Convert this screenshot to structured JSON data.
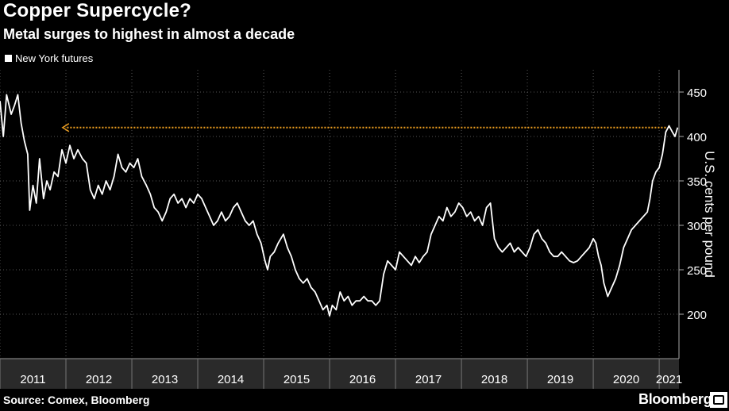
{
  "header": {
    "title": "Copper Supercycle?",
    "subtitle": "Metal surges to highest in almost a decade"
  },
  "legend": {
    "label": "New York futures",
    "swatch_color": "#ffffff"
  },
  "footer": {
    "source": "Source: Comex, Bloomberg",
    "brand": "Bloomberg"
  },
  "chart_data": {
    "type": "line",
    "title": "Copper Supercycle?",
    "subtitle": "Metal surges to highest in almost a decade",
    "ylabel": "U.S. cents per pound",
    "ylim": [
      150,
      475
    ],
    "yticks": [
      200,
      250,
      300,
      350,
      400,
      450
    ],
    "xlim": [
      2011.0,
      2021.3
    ],
    "xticks": [
      "2011",
      "2012",
      "2013",
      "2014",
      "2015",
      "2016",
      "2017",
      "2018",
      "2019",
      "2020",
      "2021"
    ],
    "grid": true,
    "legend_position": "top-left",
    "series": [
      {
        "name": "New York futures",
        "color": "#ffffff",
        "points": [
          [
            2011.0,
            440
          ],
          [
            2011.05,
            400
          ],
          [
            2011.1,
            447
          ],
          [
            2011.17,
            425
          ],
          [
            2011.22,
            435
          ],
          [
            2011.27,
            447
          ],
          [
            2011.32,
            415
          ],
          [
            2011.37,
            395
          ],
          [
            2011.42,
            380
          ],
          [
            2011.45,
            317
          ],
          [
            2011.5,
            345
          ],
          [
            2011.55,
            325
          ],
          [
            2011.6,
            375
          ],
          [
            2011.66,
            330
          ],
          [
            2011.71,
            350
          ],
          [
            2011.76,
            340
          ],
          [
            2011.82,
            360
          ],
          [
            2011.88,
            355
          ],
          [
            2011.94,
            385
          ],
          [
            2012.0,
            370
          ],
          [
            2012.06,
            390
          ],
          [
            2012.12,
            375
          ],
          [
            2012.18,
            385
          ],
          [
            2012.25,
            375
          ],
          [
            2012.31,
            370
          ],
          [
            2012.37,
            340
          ],
          [
            2012.43,
            330
          ],
          [
            2012.49,
            345
          ],
          [
            2012.55,
            335
          ],
          [
            2012.61,
            350
          ],
          [
            2012.67,
            340
          ],
          [
            2012.73,
            355
          ],
          [
            2012.79,
            380
          ],
          [
            2012.85,
            365
          ],
          [
            2012.91,
            360
          ],
          [
            2012.97,
            370
          ],
          [
            2013.03,
            365
          ],
          [
            2013.09,
            375
          ],
          [
            2013.15,
            355
          ],
          [
            2013.22,
            345
          ],
          [
            2013.28,
            335
          ],
          [
            2013.34,
            320
          ],
          [
            2013.4,
            315
          ],
          [
            2013.46,
            305
          ],
          [
            2013.52,
            315
          ],
          [
            2013.58,
            330
          ],
          [
            2013.64,
            335
          ],
          [
            2013.7,
            325
          ],
          [
            2013.76,
            330
          ],
          [
            2013.82,
            320
          ],
          [
            2013.88,
            330
          ],
          [
            2013.94,
            325
          ],
          [
            2014.0,
            335
          ],
          [
            2014.06,
            330
          ],
          [
            2014.12,
            320
          ],
          [
            2014.18,
            310
          ],
          [
            2014.24,
            300
          ],
          [
            2014.3,
            305
          ],
          [
            2014.36,
            315
          ],
          [
            2014.42,
            305
          ],
          [
            2014.48,
            310
          ],
          [
            2014.54,
            320
          ],
          [
            2014.6,
            325
          ],
          [
            2014.66,
            315
          ],
          [
            2014.72,
            305
          ],
          [
            2014.78,
            300
          ],
          [
            2014.84,
            305
          ],
          [
            2014.9,
            290
          ],
          [
            2014.96,
            280
          ],
          [
            2015.02,
            260
          ],
          [
            2015.06,
            250
          ],
          [
            2015.1,
            265
          ],
          [
            2015.16,
            270
          ],
          [
            2015.22,
            280
          ],
          [
            2015.3,
            290
          ],
          [
            2015.36,
            275
          ],
          [
            2015.42,
            265
          ],
          [
            2015.48,
            250
          ],
          [
            2015.54,
            240
          ],
          [
            2015.6,
            235
          ],
          [
            2015.66,
            240
          ],
          [
            2015.72,
            230
          ],
          [
            2015.78,
            225
          ],
          [
            2015.84,
            215
          ],
          [
            2015.9,
            205
          ],
          [
            2015.96,
            210
          ],
          [
            2016.0,
            198
          ],
          [
            2016.04,
            210
          ],
          [
            2016.1,
            205
          ],
          [
            2016.16,
            225
          ],
          [
            2016.22,
            215
          ],
          [
            2016.28,
            220
          ],
          [
            2016.34,
            210
          ],
          [
            2016.4,
            215
          ],
          [
            2016.46,
            215
          ],
          [
            2016.52,
            220
          ],
          [
            2016.58,
            215
          ],
          [
            2016.64,
            215
          ],
          [
            2016.7,
            210
          ],
          [
            2016.76,
            215
          ],
          [
            2016.82,
            245
          ],
          [
            2016.88,
            260
          ],
          [
            2016.94,
            255
          ],
          [
            2017.0,
            250
          ],
          [
            2017.06,
            270
          ],
          [
            2017.12,
            265
          ],
          [
            2017.18,
            260
          ],
          [
            2017.24,
            255
          ],
          [
            2017.3,
            265
          ],
          [
            2017.36,
            258
          ],
          [
            2017.42,
            265
          ],
          [
            2017.48,
            270
          ],
          [
            2017.54,
            290
          ],
          [
            2017.6,
            300
          ],
          [
            2017.66,
            310
          ],
          [
            2017.72,
            305
          ],
          [
            2017.78,
            320
          ],
          [
            2017.84,
            310
          ],
          [
            2017.9,
            315
          ],
          [
            2017.96,
            325
          ],
          [
            2018.02,
            320
          ],
          [
            2018.08,
            310
          ],
          [
            2018.14,
            315
          ],
          [
            2018.2,
            305
          ],
          [
            2018.26,
            310
          ],
          [
            2018.32,
            300
          ],
          [
            2018.38,
            320
          ],
          [
            2018.44,
            325
          ],
          [
            2018.5,
            285
          ],
          [
            2018.56,
            275
          ],
          [
            2018.62,
            270
          ],
          [
            2018.68,
            275
          ],
          [
            2018.74,
            280
          ],
          [
            2018.8,
            270
          ],
          [
            2018.86,
            275
          ],
          [
            2018.92,
            270
          ],
          [
            2018.98,
            265
          ],
          [
            2019.04,
            275
          ],
          [
            2019.1,
            290
          ],
          [
            2019.16,
            295
          ],
          [
            2019.22,
            285
          ],
          [
            2019.28,
            280
          ],
          [
            2019.34,
            270
          ],
          [
            2019.4,
            265
          ],
          [
            2019.46,
            265
          ],
          [
            2019.52,
            270
          ],
          [
            2019.58,
            265
          ],
          [
            2019.64,
            260
          ],
          [
            2019.7,
            258
          ],
          [
            2019.76,
            260
          ],
          [
            2019.82,
            265
          ],
          [
            2019.88,
            270
          ],
          [
            2019.94,
            275
          ],
          [
            2020.0,
            285
          ],
          [
            2020.04,
            280
          ],
          [
            2020.08,
            265
          ],
          [
            2020.12,
            255
          ],
          [
            2020.16,
            235
          ],
          [
            2020.22,
            220
          ],
          [
            2020.28,
            230
          ],
          [
            2020.34,
            240
          ],
          [
            2020.4,
            255
          ],
          [
            2020.46,
            275
          ],
          [
            2020.52,
            285
          ],
          [
            2020.58,
            295
          ],
          [
            2020.64,
            300
          ],
          [
            2020.7,
            305
          ],
          [
            2020.76,
            310
          ],
          [
            2020.82,
            315
          ],
          [
            2020.86,
            330
          ],
          [
            2020.9,
            350
          ],
          [
            2020.95,
            360
          ],
          [
            2021.0,
            365
          ],
          [
            2021.05,
            380
          ],
          [
            2021.1,
            405
          ],
          [
            2021.15,
            412
          ],
          [
            2021.2,
            405
          ],
          [
            2021.24,
            400
          ],
          [
            2021.28,
            410
          ]
        ]
      }
    ],
    "annotations": [
      {
        "type": "reference_arrow",
        "y": 410,
        "x_from": 2021.1,
        "x_to": 2011.95,
        "color": "#f0a020",
        "style": "dotted"
      }
    ]
  }
}
